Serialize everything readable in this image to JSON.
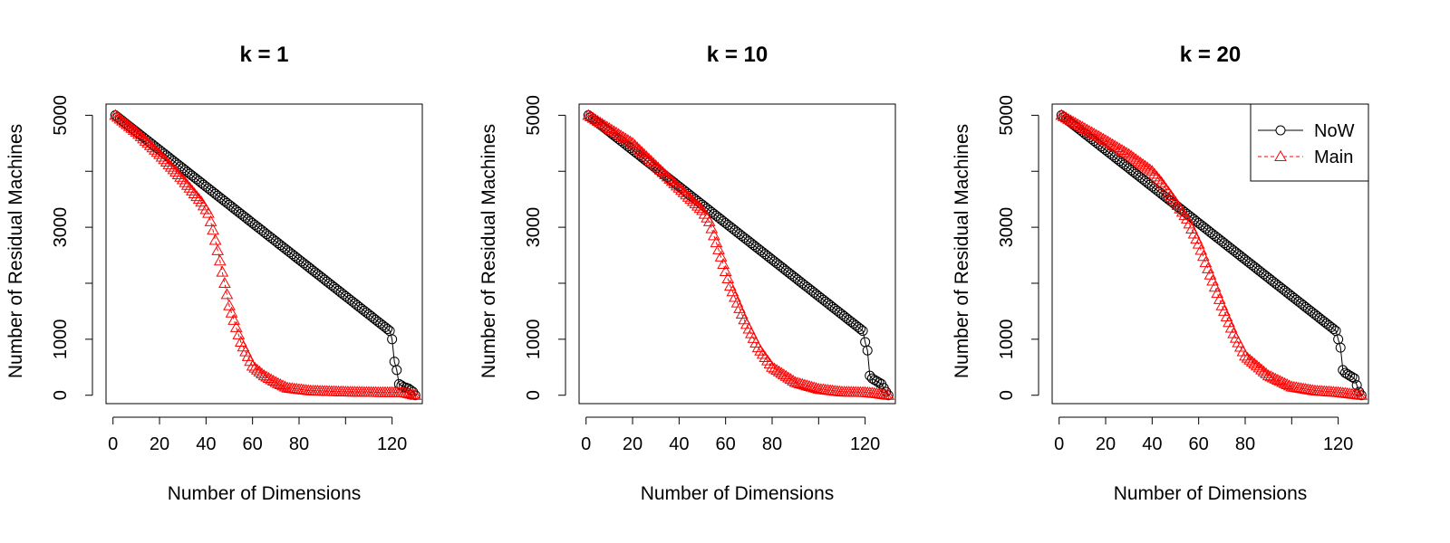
{
  "chart_data": [
    {
      "type": "line",
      "title": "k = 1",
      "xlabel": "Number of Dimensions",
      "ylabel": "Number of Residual Machines",
      "xlim": [
        -3,
        133
      ],
      "ylim": [
        -150,
        5200
      ],
      "x_ticks": [
        0,
        20,
        40,
        60,
        80,
        120
      ],
      "x_tick_marks": [
        0,
        20,
        40,
        60,
        80,
        100,
        120
      ],
      "y_ticks": [
        0,
        1000,
        3000,
        5000
      ],
      "y_tick_marks": [
        0,
        1000,
        2000,
        3000,
        4000,
        5000
      ],
      "legend": false,
      "series": [
        {
          "name": "NoW",
          "color": "#000000",
          "marker": "circle",
          "points": [
            [
              1,
              5000
            ],
            [
              119,
              1150
            ],
            [
              120,
              1000
            ],
            [
              121,
              600
            ],
            [
              122,
              450
            ],
            [
              123,
              200
            ],
            [
              125,
              150
            ],
            [
              127,
              120
            ],
            [
              129,
              60
            ],
            [
              130,
              0
            ]
          ]
        },
        {
          "name": "Main",
          "color": "#ff0000",
          "marker": "triangle",
          "points": [
            [
              1,
              5000
            ],
            [
              10,
              4700
            ],
            [
              20,
              4300
            ],
            [
              30,
              3850
            ],
            [
              38,
              3450
            ],
            [
              41,
              3250
            ],
            [
              43,
              2950
            ],
            [
              46,
              2400
            ],
            [
              50,
              1600
            ],
            [
              55,
              950
            ],
            [
              60,
              520
            ],
            [
              65,
              350
            ],
            [
              70,
              230
            ],
            [
              75,
              130
            ],
            [
              85,
              80
            ],
            [
              100,
              60
            ],
            [
              115,
              50
            ],
            [
              125,
              50
            ],
            [
              130,
              0
            ]
          ]
        }
      ]
    },
    {
      "type": "line",
      "title": "k = 10",
      "xlabel": "Number of Dimensions",
      "ylabel": "Number of Residual Machines",
      "xlim": [
        -3,
        133
      ],
      "ylim": [
        -150,
        5200
      ],
      "x_ticks": [
        0,
        20,
        40,
        60,
        80,
        120
      ],
      "x_tick_marks": [
        0,
        20,
        40,
        60,
        80,
        100,
        120
      ],
      "y_ticks": [
        0,
        1000,
        3000,
        5000
      ],
      "y_tick_marks": [
        0,
        1000,
        2000,
        3000,
        4000,
        5000
      ],
      "legend": false,
      "series": [
        {
          "name": "NoW",
          "color": "#000000",
          "marker": "circle",
          "points": [
            [
              1,
              5000
            ],
            [
              119,
              1150
            ],
            [
              120,
              950
            ],
            [
              121,
              800
            ],
            [
              122,
              350
            ],
            [
              123,
              300
            ],
            [
              125,
              250
            ],
            [
              127,
              200
            ],
            [
              129,
              60
            ],
            [
              130,
              0
            ]
          ]
        },
        {
          "name": "Main",
          "color": "#ff0000",
          "marker": "triangle",
          "points": [
            [
              1,
              5000
            ],
            [
              20,
              4500
            ],
            [
              40,
              3700
            ],
            [
              50,
              3300
            ],
            [
              53,
              3100
            ],
            [
              57,
              2600
            ],
            [
              62,
              1950
            ],
            [
              68,
              1350
            ],
            [
              74,
              850
            ],
            [
              80,
              500
            ],
            [
              90,
              230
            ],
            [
              100,
              110
            ],
            [
              110,
              60
            ],
            [
              120,
              50
            ],
            [
              125,
              30
            ],
            [
              130,
              0
            ]
          ]
        }
      ]
    },
    {
      "type": "line",
      "title": "k = 20",
      "xlabel": "Number of Dimensions",
      "ylabel": "Number of Residual Machines",
      "xlim": [
        -3,
        133
      ],
      "ylim": [
        -150,
        5200
      ],
      "x_ticks": [
        0,
        20,
        40,
        60,
        80,
        120
      ],
      "x_tick_marks": [
        0,
        20,
        40,
        60,
        80,
        100,
        120
      ],
      "y_ticks": [
        0,
        1000,
        3000,
        5000
      ],
      "y_tick_marks": [
        0,
        1000,
        2000,
        3000,
        4000,
        5000
      ],
      "legend": true,
      "legend_position": "top-right",
      "series": [
        {
          "name": "NoW",
          "color": "#000000",
          "marker": "circle",
          "points": [
            [
              1,
              5000
            ],
            [
              119,
              1150
            ],
            [
              120,
              1000
            ],
            [
              121,
              850
            ],
            [
              122,
              450
            ],
            [
              123,
              400
            ],
            [
              125,
              350
            ],
            [
              127,
              300
            ],
            [
              129,
              60
            ],
            [
              130,
              0
            ]
          ]
        },
        {
          "name": "Main",
          "color": "#ff0000",
          "marker": "triangle",
          "points": [
            [
              1,
              5000
            ],
            [
              20,
              4550
            ],
            [
              30,
              4300
            ],
            [
              40,
              4000
            ],
            [
              44,
              3800
            ],
            [
              50,
              3450
            ],
            [
              55,
              3150
            ],
            [
              60,
              2700
            ],
            [
              65,
              2150
            ],
            [
              70,
              1600
            ],
            [
              75,
              1100
            ],
            [
              80,
              700
            ],
            [
              90,
              350
            ],
            [
              100,
              150
            ],
            [
              110,
              80
            ],
            [
              120,
              50
            ],
            [
              130,
              0
            ]
          ]
        }
      ]
    }
  ]
}
